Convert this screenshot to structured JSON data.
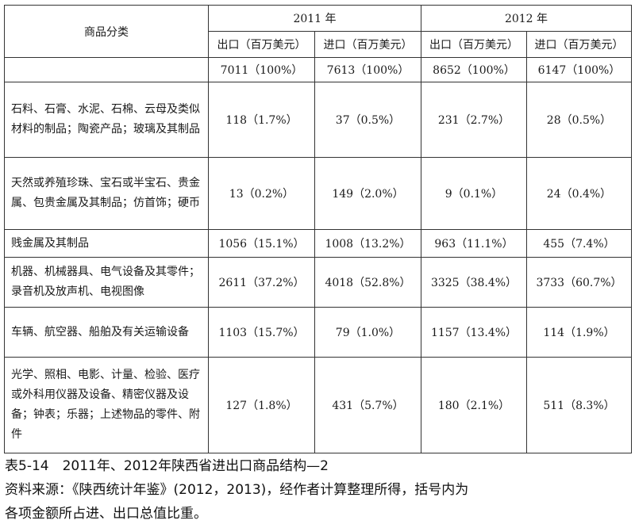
{
  "table": {
    "header": {
      "category": "商品分类",
      "years": [
        "2011 年",
        "2012 年"
      ],
      "cols": [
        "出口（百万美元）",
        "进口（百万美元）",
        "出口（百万美元）",
        "进口（百万美元）"
      ],
      "totals": [
        "7011（100%）",
        "7613（100%）",
        "8652（100%）",
        "6147（100%）"
      ]
    },
    "rows": [
      {
        "category": "石料、石膏、水泥、石棉、云母及类似材料的制品；陶瓷产品；玻璃及其制品",
        "values": [
          "118（1.7%）",
          "37（0.5%）",
          "231（2.7%）",
          "28（0.5%）"
        ]
      },
      {
        "category": "天然或养殖珍珠、宝石或半宝石、贵金属、包贵金属及其制品；仿首饰；硬币",
        "values": [
          "13（0.2%）",
          "149（2.0%）",
          "9（0.1%）",
          "24（0.4%）"
        ]
      },
      {
        "category": "贱金属及其制品",
        "values": [
          "1056（15.1%）",
          "1008（13.2%）",
          "963（11.1%）",
          "455（7.4%）"
        ]
      },
      {
        "category": "机器、机械器具、电气设备及其零件；录音机及放声机、电视图像",
        "values": [
          "2611（37.2%）",
          "4018（52.8%）",
          "3325（38.4%）",
          "3733（60.7%）"
        ]
      },
      {
        "category": "车辆、航空器、船舶及有关运输设备",
        "values": [
          "1103（15.7%）",
          "79（1.0%）",
          "1157（13.4%）",
          "114（1.9%）"
        ]
      },
      {
        "category": "光学、照相、电影、计量、检验、医疗或外科用仪器及设备、精密仪器及设备；钟表；乐器；上述物品的零件、附件",
        "values": [
          "127（1.8%）",
          "431（5.7%）",
          "180（2.1%）",
          "511（8.3%）"
        ]
      }
    ]
  },
  "caption": {
    "title": "表5-14　2011年、2012年陕西省进出口商品结构—2",
    "source_line1": "资料来源：《陕西统计年鉴》(2012，2013)，经作者计算整理所得，括号内为",
    "source_line2": "各项金额所占进、出口总值比重。"
  }
}
